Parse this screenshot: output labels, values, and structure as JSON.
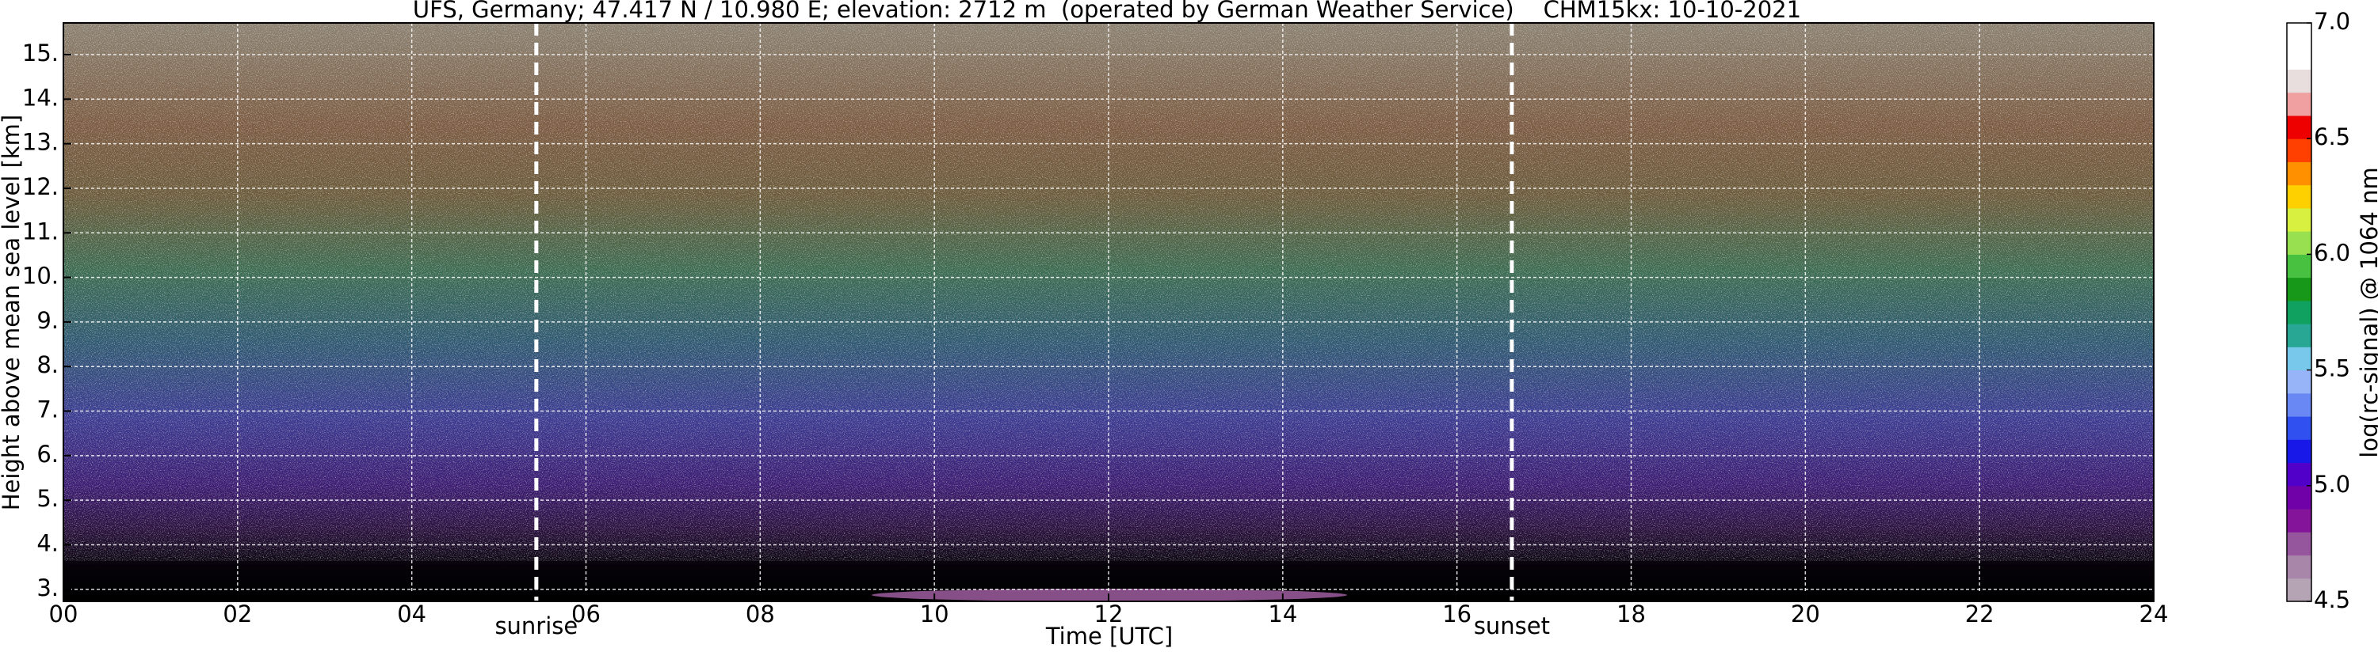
{
  "chart_data": {
    "type": "heatmap",
    "title": "UFS, Germany; 47.417 N / 10.980 E; elevation: 2712 m  (operated by German Weather Service)    CHM15kx: 10-10-2021",
    "xlabel": "Time [UTC]",
    "ylabel": "Height above mean sea level [km]",
    "xlim": [
      0,
      24
    ],
    "ylim": [
      2.73,
      15.71
    ],
    "xticks": [
      {
        "value": 0,
        "label": "00"
      },
      {
        "value": 2,
        "label": "02"
      },
      {
        "value": 4,
        "label": "04"
      },
      {
        "value": 6,
        "label": "06"
      },
      {
        "value": 8,
        "label": "08"
      },
      10,
      12,
      14,
      16,
      18,
      20,
      22,
      24
    ],
    "yticks": [
      {
        "value": 3,
        "label": "3."
      },
      {
        "value": 4,
        "label": "4."
      },
      {
        "value": 5,
        "label": "5."
      },
      {
        "value": 6,
        "label": "6."
      },
      {
        "value": 7,
        "label": "7."
      },
      {
        "value": 8,
        "label": "8."
      },
      {
        "value": 9,
        "label": "9."
      },
      {
        "value": 10,
        "label": "10."
      },
      {
        "value": 11,
        "label": "11."
      },
      {
        "value": 12,
        "label": "12."
      },
      {
        "value": 13,
        "label": "13."
      },
      {
        "value": 14,
        "label": "14."
      },
      {
        "value": 15,
        "label": "15."
      }
    ],
    "grid": true,
    "annotations": [
      {
        "label": "sunrise",
        "x": 5.43
      },
      {
        "label": "sunset",
        "x": 16.63
      }
    ],
    "colorbar": {
      "label": "log(rc-signal) @ 1064 nm",
      "lim": [
        4.5,
        7.0
      ],
      "ticks": [
        4.5,
        {
          "value": 5,
          "label": "5.0"
        },
        5.5,
        {
          "value": 6,
          "label": "6.0"
        },
        6.5,
        {
          "value": 7,
          "label": "7.0"
        }
      ],
      "colors": [
        "#b4a4b4",
        "#a886aa",
        "#96569e",
        "#84159a",
        "#7000a8",
        "#5000c8",
        "#1818e8",
        "#3050f0",
        "#6a88f4",
        "#98b4f8",
        "#78c8ec",
        "#28a894",
        "#10a060",
        "#189818",
        "#48c040",
        "#98e050",
        "#d8f040",
        "#ffd000",
        "#ff9000",
        "#ff4000",
        "#ee0000",
        "#f0a0a0",
        "#e8dede",
        "#ffffff",
        "#ffffff"
      ]
    }
  }
}
